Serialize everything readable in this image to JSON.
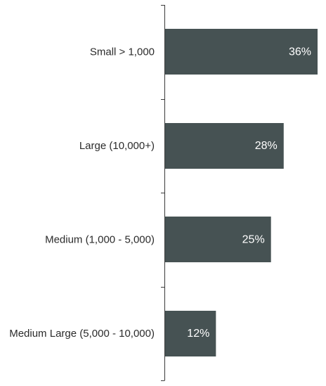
{
  "chart_data": {
    "type": "bar",
    "orientation": "horizontal",
    "title": "",
    "xlabel": "",
    "ylabel": "",
    "categories": [
      "Small > 1,000",
      "Large (10,000+)",
      "Medium (1,000 - 5,000)",
      "Medium Large (5,000 - 10,000)"
    ],
    "values": [
      36,
      28,
      25,
      12
    ],
    "value_labels": [
      "36%",
      "28%",
      "25%",
      "12%"
    ],
    "value_unit": "%",
    "xlim": [
      0,
      36
    ],
    "grid": false,
    "legend": "none",
    "colors": {
      "bar": "#465253",
      "value_text": "#ffffff",
      "category_text": "#2b2b2b",
      "axis": "#3a3a3a"
    }
  }
}
